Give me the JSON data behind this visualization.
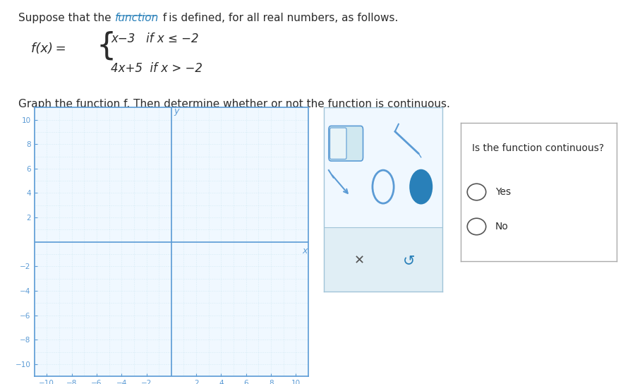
{
  "title_text": "Suppose that the ",
  "title_link": "function",
  "title_rest": " f is defined, for all real numbers, as follows.",
  "func_label": "f(x) =",
  "piece1": "x−3   if x ≤ −2",
  "piece2": "4x+5  if x > −2",
  "graph_prompt": "Graph the function f. Then determine whether or not the function is continuous.",
  "continuous_q": "Is the function continuous?",
  "yes_label": "Yes",
  "no_label": "No",
  "axis_color": "#5b9bd5",
  "grid_color": "#add8e6",
  "bg_color": "#ffffff",
  "plot_bg": "#f0f8ff",
  "border_color": "#5b9bd5",
  "text_color": "#2c2c2c",
  "link_color": "#2980b9",
  "xlim": [
    -11,
    11
  ],
  "ylim": [
    -11,
    11
  ],
  "xticks": [
    -10,
    -8,
    -6,
    -4,
    -2,
    2,
    4,
    6,
    8,
    10
  ],
  "yticks": [
    -10,
    -8,
    -6,
    -4,
    -2,
    2,
    4,
    6,
    8,
    10
  ]
}
